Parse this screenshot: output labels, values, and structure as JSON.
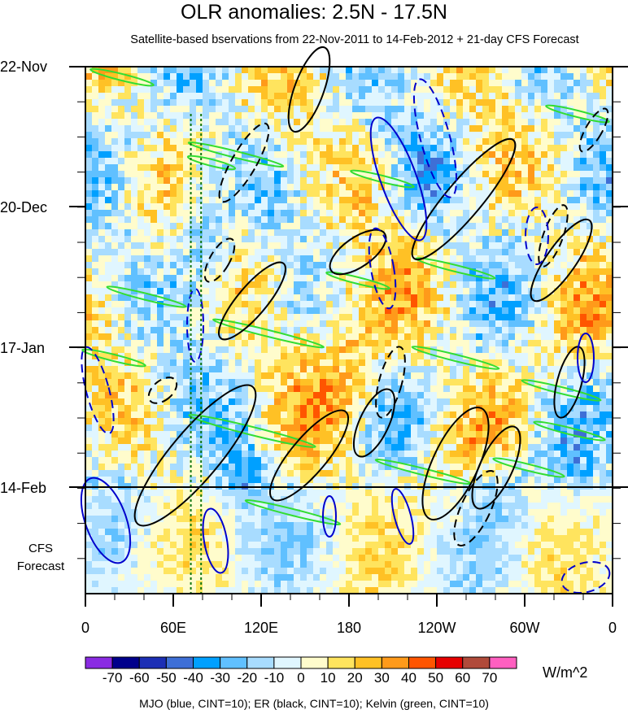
{
  "title": "OLR anomalies: 2.5N - 17.5N",
  "subtitle": "Satellite-based bservations from 22-Nov-2011 to 14-Feb-2012 + 21-day CFS Forecast",
  "y_axis": {
    "labels": [
      "22-Nov",
      "20-Dec",
      "17-Jan",
      "14-Feb"
    ],
    "forecast_label_line1": "CFS",
    "forecast_label_line2": "Forecast"
  },
  "x_axis": {
    "labels": [
      "0",
      "60E",
      "120E",
      "180",
      "120W",
      "60W",
      "0"
    ]
  },
  "colorbar": {
    "units": "W/m^2",
    "tick_labels": [
      "-70",
      "-60",
      "-50",
      "-40",
      "-30",
      "-20",
      "-10",
      "0",
      "10",
      "20",
      "30",
      "40",
      "50",
      "60",
      "70"
    ],
    "colors": [
      "#8a2be2",
      "#00008b",
      "#1c2fb5",
      "#3e6fd6",
      "#00a0ff",
      "#60c0ff",
      "#a8dcff",
      "#e0f6ff",
      "#fffccc",
      "#ffe45e",
      "#ffc125",
      "#ff9a1a",
      "#ff5500",
      "#e60000",
      "#b04a3a",
      "#ff5fc0"
    ]
  },
  "footer": "MJO (blue, CINT=10); ER (black, CINT=10); Kelvin (green, CINT=10)",
  "chart_data": {
    "type": "heatmap",
    "title": "OLR anomalies: 2.5N - 17.5N",
    "x_range_deg": [
      0,
      360
    ],
    "x_tick_labels": [
      "0",
      "60E",
      "120E",
      "180",
      "120W",
      "60W",
      "0"
    ],
    "time_range": [
      "22-Nov-2011",
      "06-Mar-2012"
    ],
    "y_tick_labels": [
      "22-Nov",
      "20-Dec",
      "17-Jan",
      "14-Feb"
    ],
    "observation_end": "14-Feb-2012",
    "forecast_days": 21,
    "units": "W/m^2",
    "contour_levels": [
      -70,
      -60,
      -50,
      -40,
      -30,
      -20,
      -10,
      0,
      10,
      20,
      30,
      40,
      50,
      60,
      70
    ],
    "overlays": [
      {
        "name": "MJO",
        "color": "blue",
        "cint": 10
      },
      {
        "name": "ER",
        "color": "black",
        "cint": 10
      },
      {
        "name": "Kelvin",
        "color": "green",
        "cint": 10
      }
    ],
    "reference_longitudes_deg": [
      72,
      79
    ]
  }
}
